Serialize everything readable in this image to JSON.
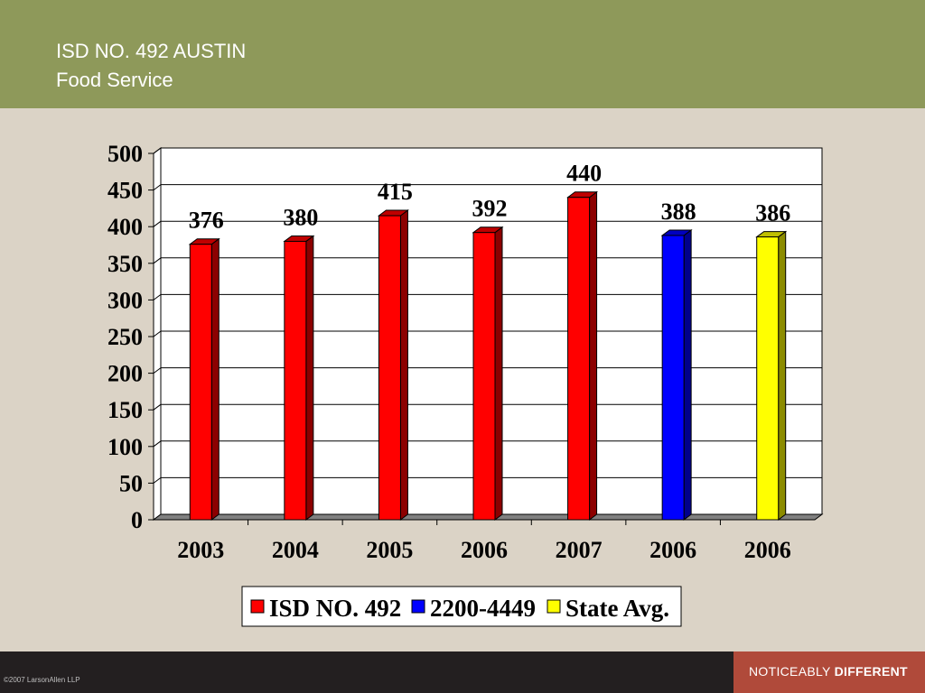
{
  "header": {
    "title_line1": "ISD NO. 492 AUSTIN",
    "title_line2": "Food Service"
  },
  "colors": {
    "header_bg": "#8E995A",
    "page_bg": "#DBD3C6",
    "footer_bg": "#231F20",
    "badge_bg": "#B04A3A",
    "isd": "#FF0000",
    "peer": "#0000FF",
    "state": "#FFFF00"
  },
  "chart_data": {
    "type": "bar",
    "categories": [
      "2003",
      "2004",
      "2005",
      "2006",
      "2007",
      "2006",
      "2006"
    ],
    "series": [
      {
        "name": "ISD NO. 492",
        "color": "#FF0000",
        "values": [
          376,
          380,
          415,
          392,
          440,
          null,
          null
        ]
      },
      {
        "name": "2200-4449",
        "color": "#0000FF",
        "values": [
          null,
          null,
          null,
          null,
          null,
          388,
          null
        ]
      },
      {
        "name": "State Avg.",
        "color": "#FFFF00",
        "values": [
          null,
          null,
          null,
          null,
          null,
          null,
          386
        ]
      }
    ],
    "ylim": [
      0,
      500
    ],
    "yticks": [
      0,
      50,
      100,
      150,
      200,
      250,
      300,
      350,
      400,
      450,
      500
    ],
    "grid": true,
    "legend_position": "bottom"
  },
  "footer": {
    "copyright": "©2007 LarsonAllen LLP",
    "tagline_light": "NOTICEABLY ",
    "tagline_bold": "DIFFERENT"
  }
}
